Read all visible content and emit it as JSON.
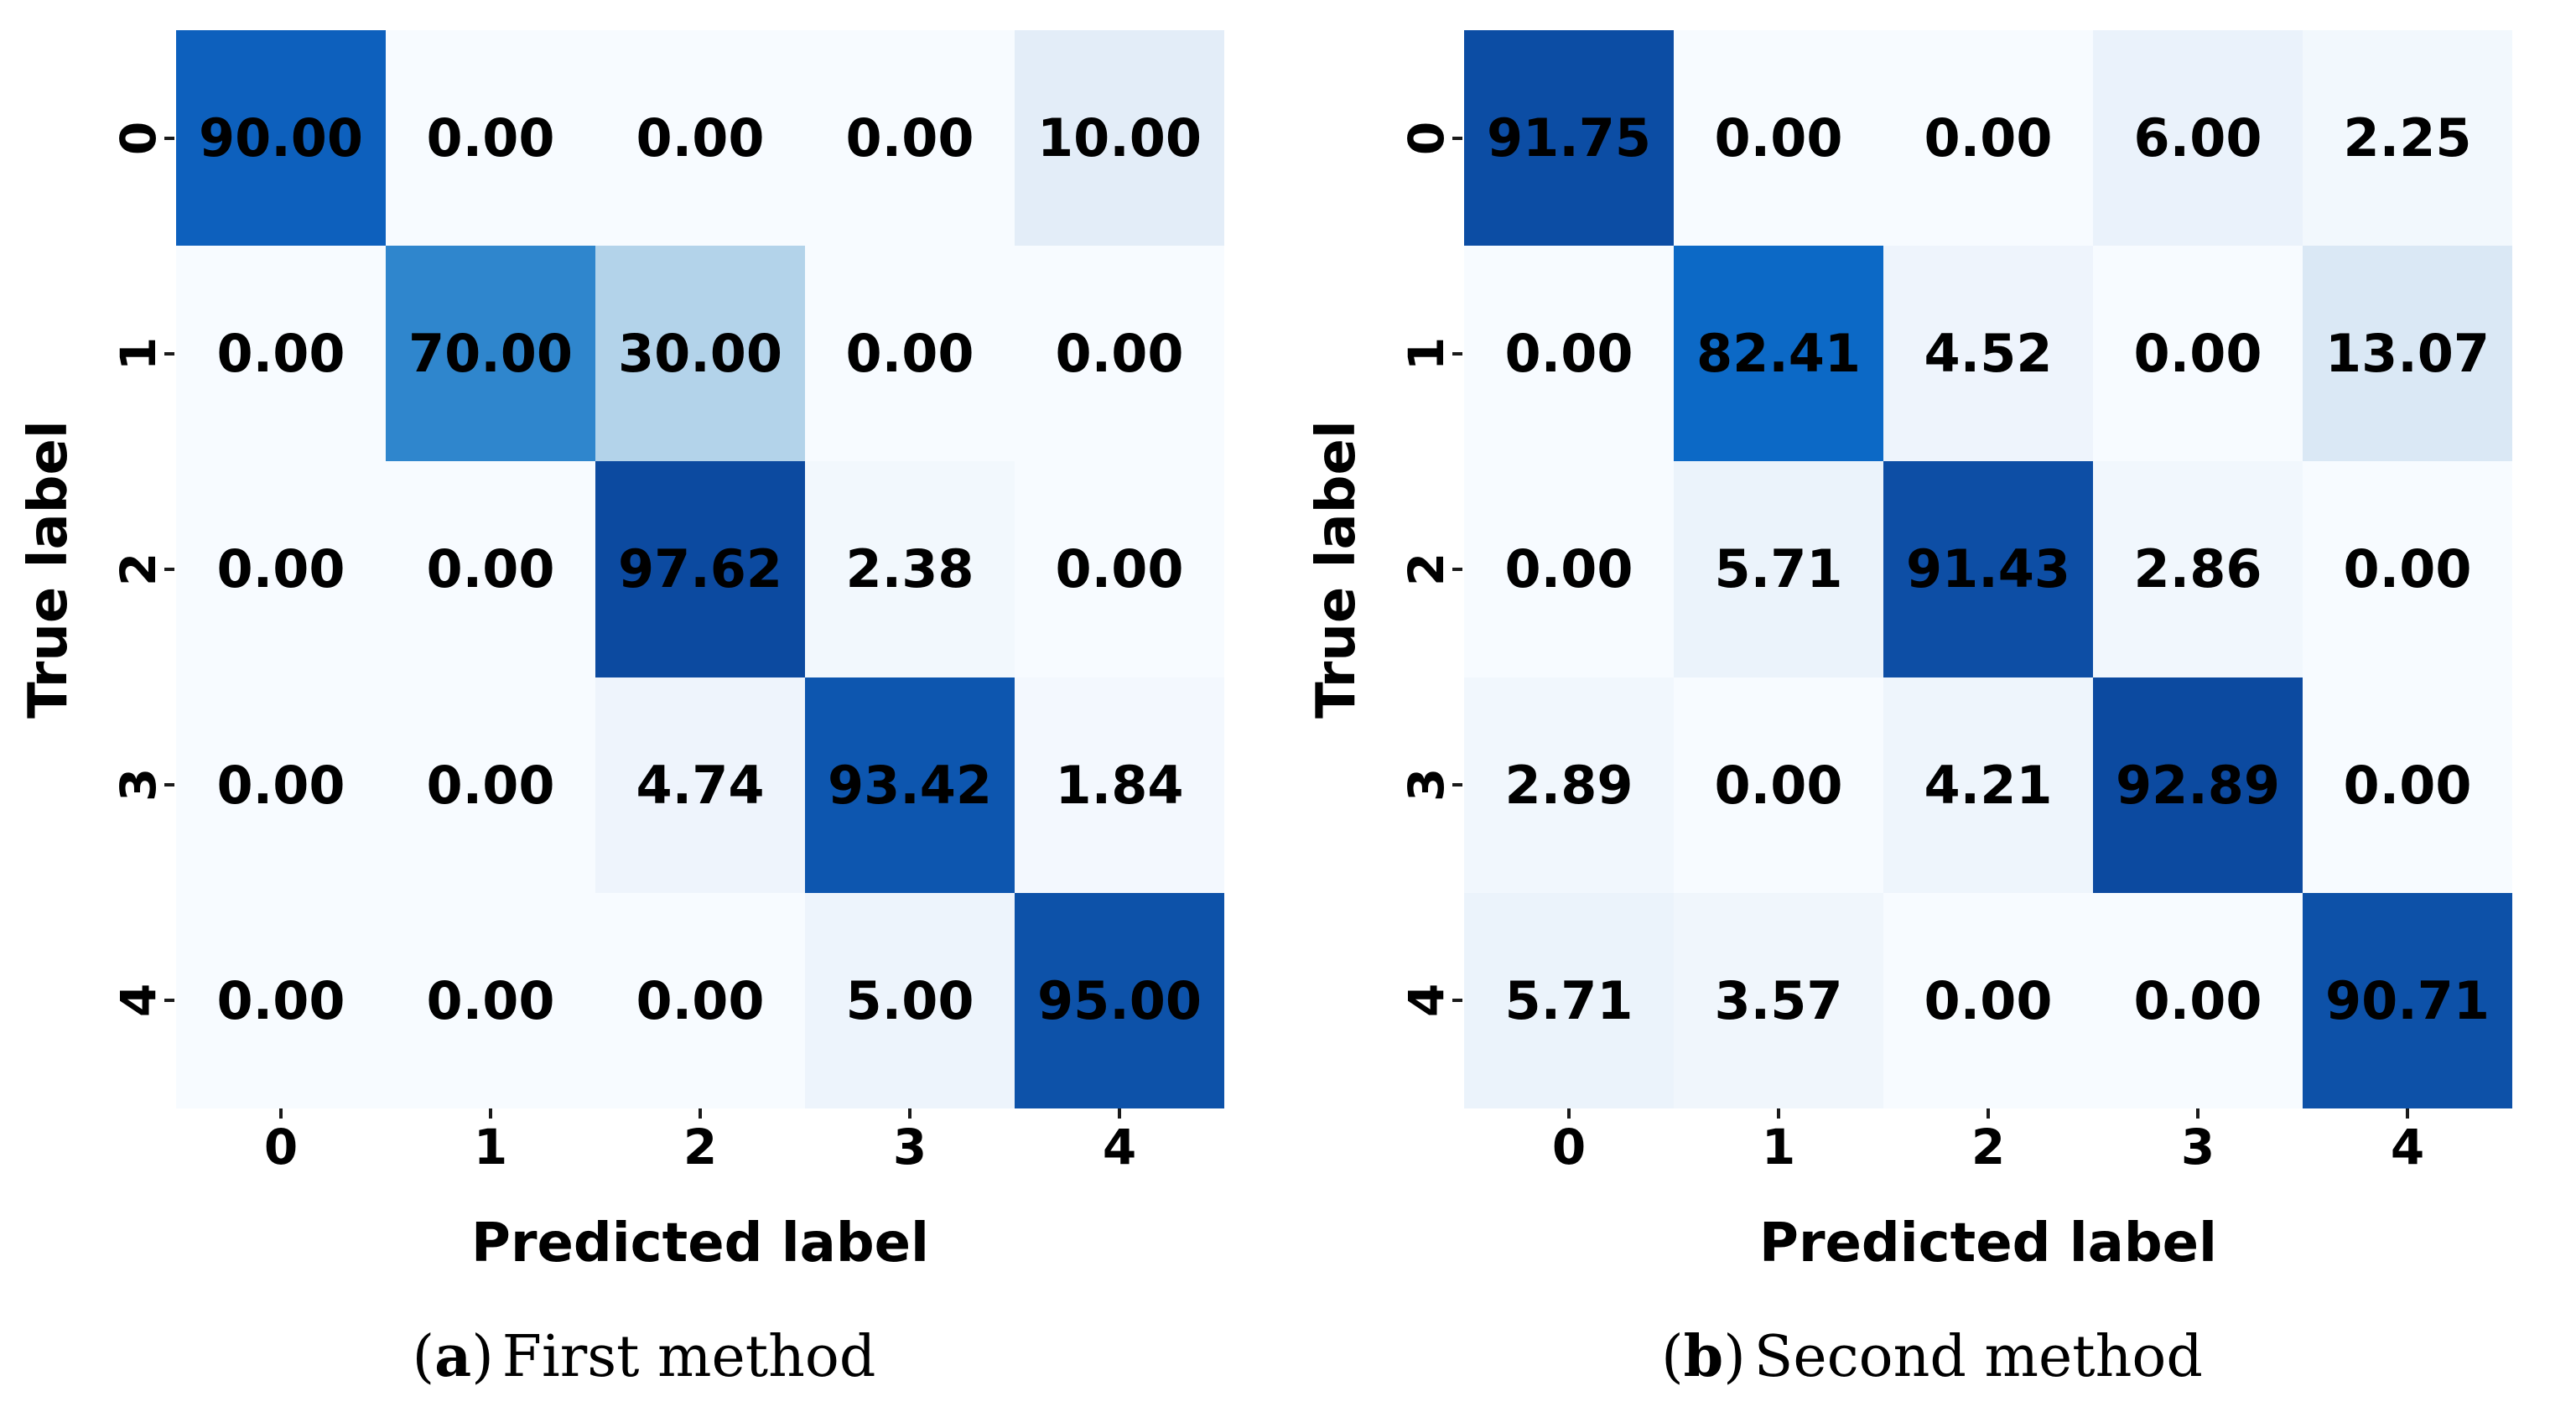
{
  "page": {
    "background": "#ffffff"
  },
  "colors": {
    "cell_text": "#000000",
    "axis_text": "#000000",
    "tick_mark": "#1a1a1a",
    "scale": [
      {
        "t": 0.0,
        "color": "#f7fbff"
      },
      {
        "t": 0.103,
        "color": "#e3edf8"
      },
      {
        "t": 0.307,
        "color": "#b3d3ea"
      },
      {
        "t": 0.717,
        "color": "#2f86cd"
      },
      {
        "t": 0.887,
        "color": "#0c69c6"
      },
      {
        "t": 0.922,
        "color": "#0d60bd"
      },
      {
        "t": 0.975,
        "color": "#0d51a8"
      },
      {
        "t": 1.0,
        "color": "#0c4aa0"
      }
    ]
  },
  "chart_data": [
    {
      "type": "heatmap",
      "subtype": "confusion-matrix",
      "caption": {
        "open": "(",
        "letter": "a",
        "close": ")",
        "text": "First method"
      },
      "xlabel": "Predicted label",
      "ylabel": "True label",
      "x_tick_labels": [
        "0",
        "1",
        "2",
        "3",
        "4"
      ],
      "y_tick_labels": [
        "0",
        "1",
        "2",
        "3",
        "4"
      ],
      "values": [
        [
          90.0,
          0.0,
          0.0,
          0.0,
          10.0
        ],
        [
          0.0,
          70.0,
          30.0,
          0.0,
          0.0
        ],
        [
          0.0,
          0.0,
          97.62,
          2.38,
          0.0
        ],
        [
          0.0,
          0.0,
          4.74,
          93.42,
          1.84
        ],
        [
          0.0,
          0.0,
          0.0,
          5.0,
          95.0
        ]
      ],
      "value_decimals": 2,
      "colormap": "Blues",
      "color_normalization": "per-matrix min-max",
      "grid": false,
      "legend": "none"
    },
    {
      "type": "heatmap",
      "subtype": "confusion-matrix",
      "caption": {
        "open": "(",
        "letter": "b",
        "close": ")",
        "text": "Second method"
      },
      "xlabel": "Predicted label",
      "ylabel": "True label",
      "x_tick_labels": [
        "0",
        "1",
        "2",
        "3",
        "4"
      ],
      "y_tick_labels": [
        "0",
        "1",
        "2",
        "3",
        "4"
      ],
      "values": [
        [
          91.75,
          0.0,
          0.0,
          6.0,
          2.25
        ],
        [
          0.0,
          82.41,
          4.52,
          0.0,
          13.07
        ],
        [
          0.0,
          5.71,
          91.43,
          2.86,
          0.0
        ],
        [
          2.89,
          0.0,
          4.21,
          92.89,
          0.0
        ],
        [
          5.71,
          3.57,
          0.0,
          0.0,
          90.71
        ]
      ],
      "value_decimals": 2,
      "colormap": "Blues",
      "color_normalization": "per-matrix min-max",
      "grid": false,
      "legend": "none"
    }
  ]
}
